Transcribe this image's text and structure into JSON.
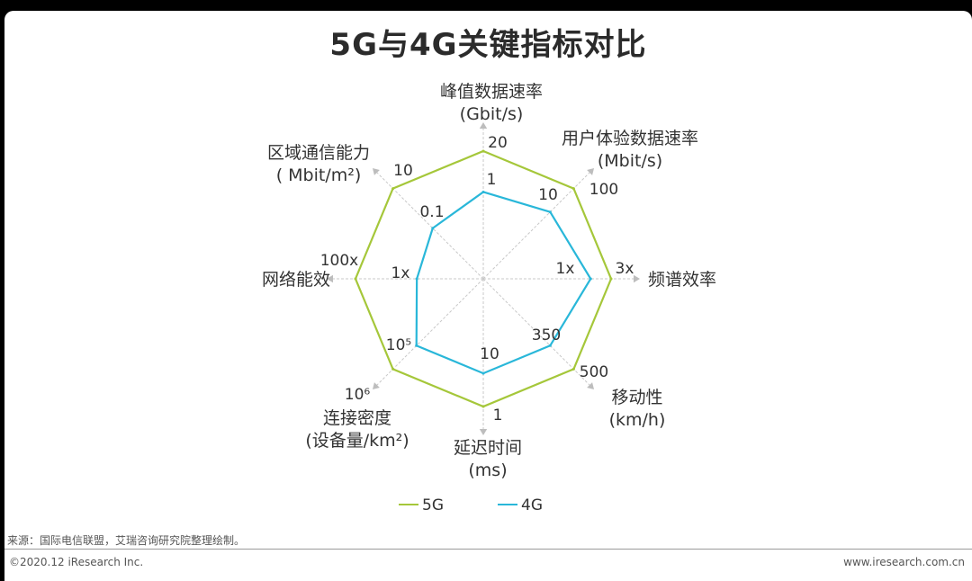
{
  "header": {
    "title": "5G与4G关键指标对比"
  },
  "chart_data": {
    "type": "radar",
    "axes": [
      {
        "name": "峰值数据速率",
        "unit": "(Gbit/s)",
        "value_5g": "20",
        "value_4g": "1"
      },
      {
        "name": "用户体验数据速率",
        "unit": "(Mbit/s)",
        "value_5g": "100",
        "value_4g": "10"
      },
      {
        "name": "频谱效率",
        "unit": "",
        "value_5g": "3x",
        "value_4g": "1x"
      },
      {
        "name": "移动性",
        "unit": "(km/h)",
        "value_5g": "500",
        "value_4g": "350"
      },
      {
        "name": "延迟时间",
        "unit": "(ms)",
        "value_5g": "1",
        "value_4g": "10"
      },
      {
        "name": "连接密度",
        "unit": "(设备量/km²)",
        "value_5g": "10⁶",
        "value_4g": "10⁵"
      },
      {
        "name": "网络能效",
        "unit": "",
        "value_5g": "100x",
        "value_4g": "1x"
      },
      {
        "name": "区域通信能力",
        "unit": "( Mbit/m²)",
        "value_5g": "10",
        "value_4g": "0.1"
      }
    ],
    "series": [
      {
        "name": "5G",
        "color": "#a5c73a",
        "radius": [
          1,
          1,
          1,
          1,
          1,
          1,
          1,
          1
        ]
      },
      {
        "name": "4G",
        "color": "#29b7d9",
        "radius": [
          0.68,
          0.74,
          0.84,
          0.74,
          0.74,
          0.74,
          0.52,
          0.56
        ]
      }
    ]
  },
  "legend": {
    "item_5g": "5G",
    "item_4g": "4G"
  },
  "footer": {
    "source": "来源：国际电信联盟，艾瑞咨询研究院整理绘制。",
    "copyright": "©2020.12 iResearch Inc.",
    "website": "www.iresearch.com.cn"
  }
}
